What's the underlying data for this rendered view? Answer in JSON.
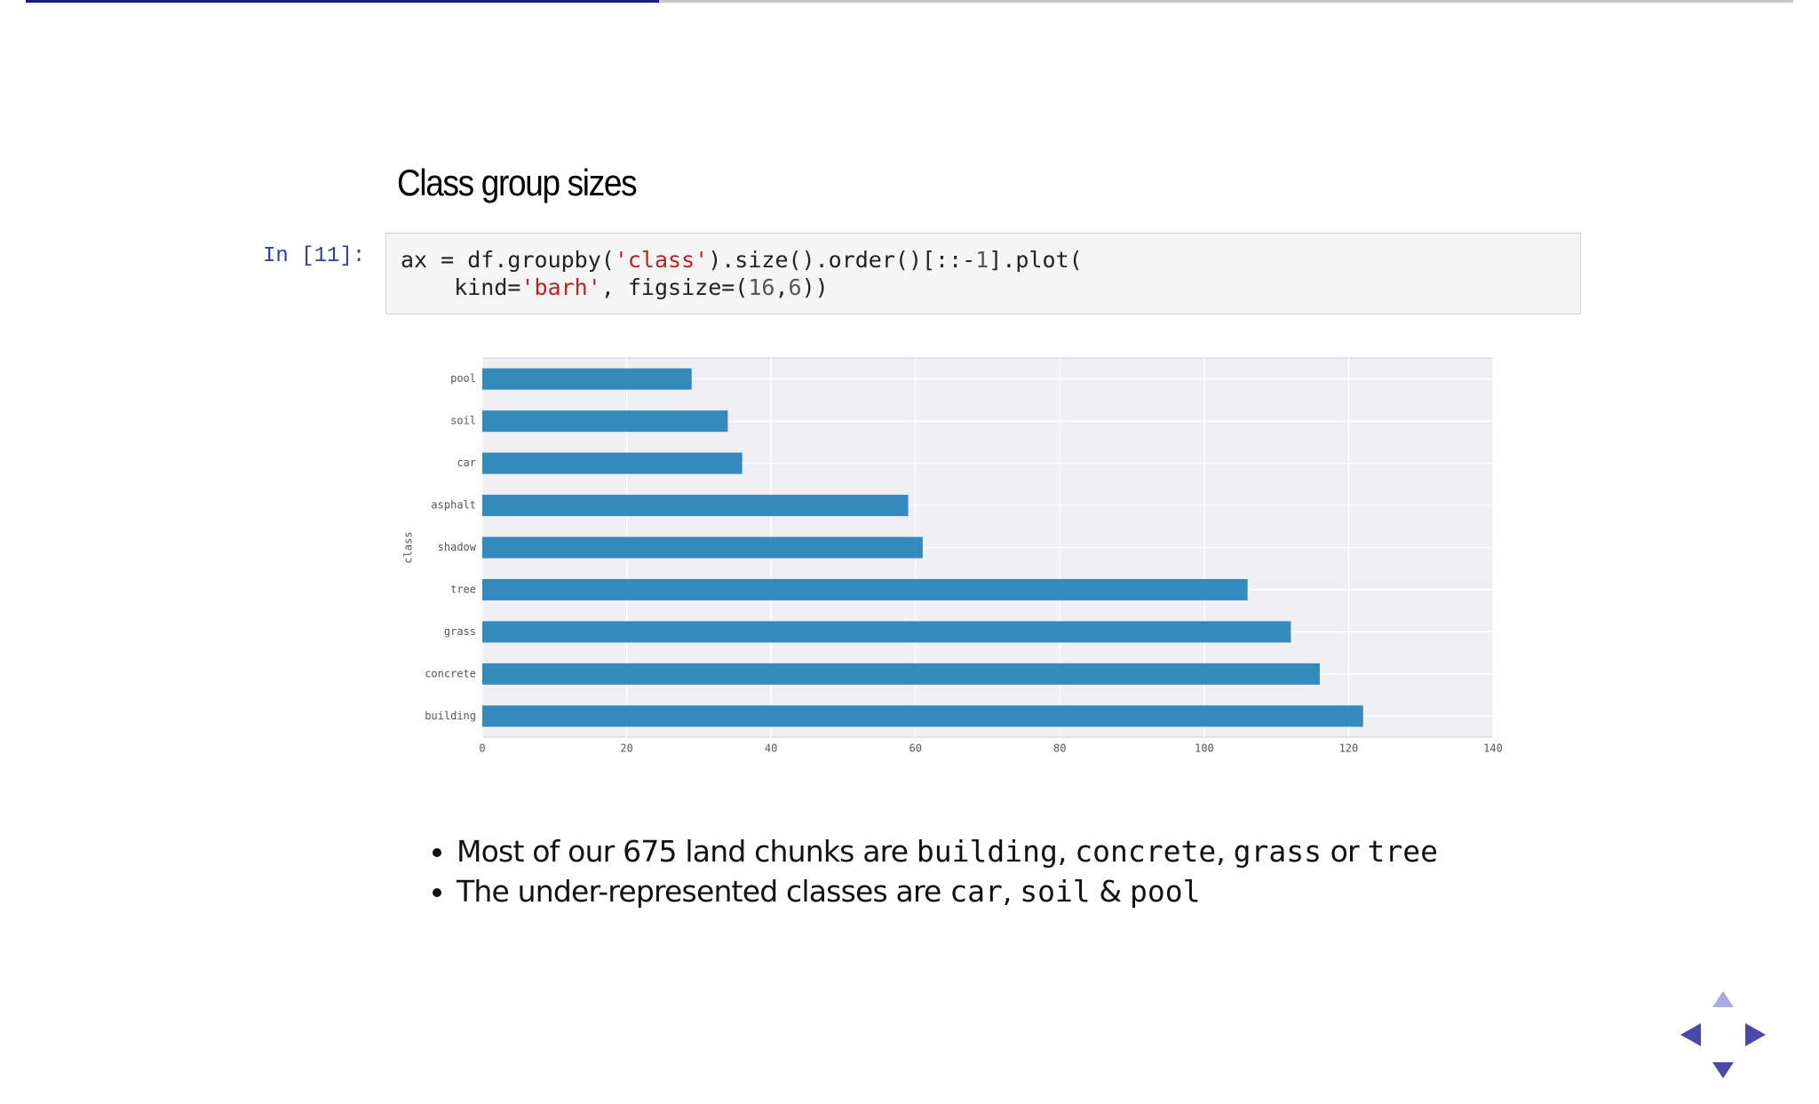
{
  "slide": {
    "title": "Class group sizes",
    "prompt": "In [11]:",
    "code": [
      [
        "ax = df.groupby(",
        "'class'",
        ").size().order()[::-",
        "1",
        "].plot("
      ],
      [
        "    kind=",
        "'barh'",
        ", figsize=(",
        "16",
        ",",
        "6",
        "))"
      ]
    ],
    "bullets": [
      [
        "Most of our 675 land chunks are ",
        "building",
        ", ",
        "concrete",
        ", ",
        "grass",
        " or ",
        "tree"
      ],
      [
        "The under-represented classes are ",
        "car",
        ", ",
        "soil",
        " & ",
        "pool"
      ]
    ]
  },
  "chart_data": {
    "type": "barh",
    "ylabel": "class",
    "categories": [
      "pool",
      "soil",
      "car",
      "asphalt",
      "shadow",
      "tree",
      "grass",
      "concrete",
      "building"
    ],
    "values": [
      29,
      34,
      36,
      59,
      61,
      106,
      112,
      116,
      122
    ],
    "color": "#348abd",
    "xlim": [
      0,
      140
    ],
    "xticks": [
      0,
      20,
      40,
      60,
      80,
      100,
      120,
      140
    ],
    "grid": true
  }
}
